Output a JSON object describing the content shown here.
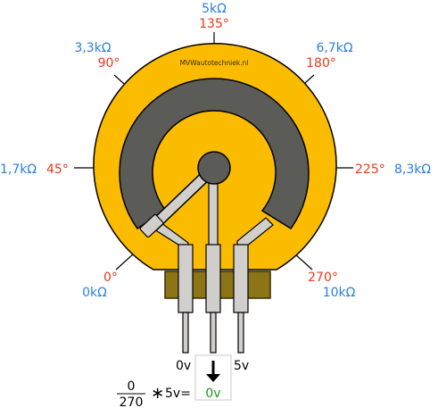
{
  "site_label": "MVWautotechniek.nl",
  "positions": [
    {
      "id": "0",
      "ohm": "0kΩ",
      "deg": "0°"
    },
    {
      "id": "45",
      "ohm": "1,7kΩ",
      "deg": "45°"
    },
    {
      "id": "90",
      "ohm": "3,3kΩ",
      "deg": "90°"
    },
    {
      "id": "135",
      "ohm": "5kΩ",
      "deg": "135°"
    },
    {
      "id": "180",
      "ohm": "6,7kΩ",
      "deg": "180°"
    },
    {
      "id": "225",
      "ohm": "8,3kΩ",
      "deg": "225°"
    },
    {
      "id": "270",
      "ohm": "10kΩ",
      "deg": "270°"
    }
  ],
  "pins": {
    "left": "0v",
    "right": "5v"
  },
  "formula": {
    "numerator": "0",
    "denominator": "270",
    "operator": "∗",
    "rest": "5v=",
    "result": "0v"
  },
  "colors": {
    "body": "#fbbc00",
    "track": "#5b5b58",
    "base": "#8c7417",
    "ohm_text": "#2a7fde",
    "deg_text": "#e8391d",
    "result_text": "#1a9a1a"
  }
}
